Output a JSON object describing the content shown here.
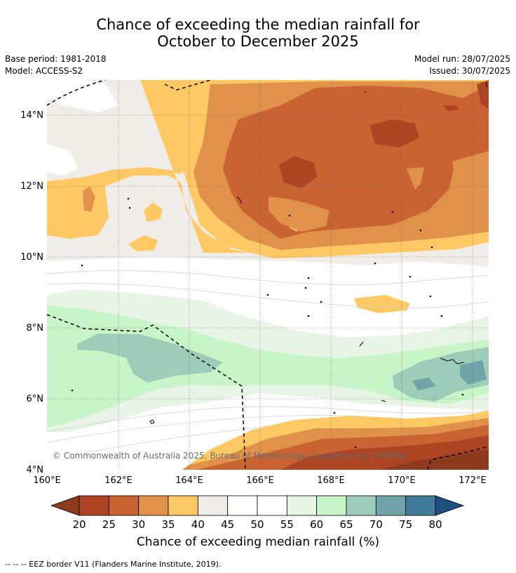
{
  "title_line1": "Chance of exceeding the median rainfall for",
  "title_line2": "October to December 2025",
  "base_period": "Base period: 1981-2018",
  "model": "Model: ACCESS-S2",
  "model_run": "Model run: 28/07/2025",
  "issued": "Issued: 30/07/2025",
  "copyright": "© Commonwealth of Australia 2025, Bureau of Meteorology, supported by COSPPac",
  "colorbar_title": "Chance of exceeding median rainfall (%)",
  "footer": "--  --  -- EEZ border V11 (Flanders Marine Institute, 2019).",
  "map": {
    "lon_ticks": [
      "160°E",
      "162°E",
      "164°E",
      "166°E",
      "168°E",
      "170°E",
      "172°E"
    ],
    "lat_ticks": [
      "14°N",
      "12°N",
      "10°N",
      "8°N",
      "6°N",
      "4°N"
    ],
    "lon_range": [
      160,
      172.5
    ],
    "lat_range": [
      4,
      15
    ]
  },
  "colorbar": {
    "labels": [
      "20",
      "25",
      "30",
      "35",
      "40",
      "45",
      "50",
      "55",
      "60",
      "65",
      "70",
      "75",
      "80"
    ],
    "under_color": "#8e3a1e",
    "over_color": "#1e4f80",
    "colors": [
      "#ad4522",
      "#c96331",
      "#e0924a",
      "#fec965",
      "#f0ece7",
      "#ffffff",
      "#ffffff",
      "#e8f5e6",
      "#c8f5c8",
      "#9dcdb8",
      "#6fa4a8",
      "#417b9a"
    ]
  }
}
